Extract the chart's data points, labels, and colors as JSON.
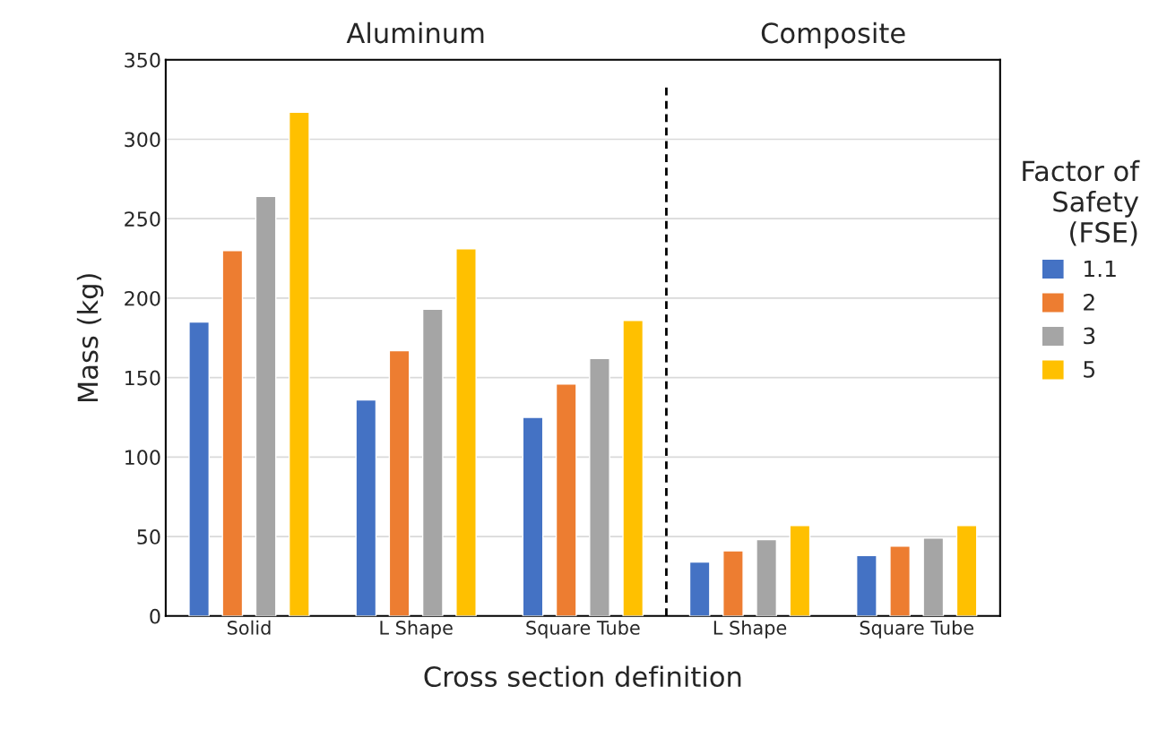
{
  "chart_data": {
    "type": "bar",
    "xlabel": "Cross section definition",
    "ylabel": "Mass (kg)",
    "legend_title": "Factor of\nSafety\n(FSE)",
    "categories": [
      "Solid",
      "L Shape",
      "Square Tube",
      "L Shape",
      "Square Tube"
    ],
    "series": [
      {
        "name": "1.1",
        "color": "#4472c4",
        "values": [
          185,
          136,
          125,
          34,
          38
        ]
      },
      {
        "name": "2",
        "color": "#ed7d31",
        "values": [
          230,
          167,
          146,
          41,
          44
        ]
      },
      {
        "name": "3",
        "color": "#a5a5a5",
        "values": [
          264,
          193,
          162,
          48,
          49
        ]
      },
      {
        "name": "5",
        "color": "#ffc000",
        "values": [
          317,
          231,
          186,
          57,
          57
        ]
      }
    ],
    "ylim": [
      0,
      350
    ],
    "yticks": [
      0,
      50,
      100,
      150,
      200,
      250,
      300,
      350
    ],
    "grid": "y",
    "legend": "right",
    "annotations": [
      "Aluminum",
      "Composite"
    ]
  }
}
